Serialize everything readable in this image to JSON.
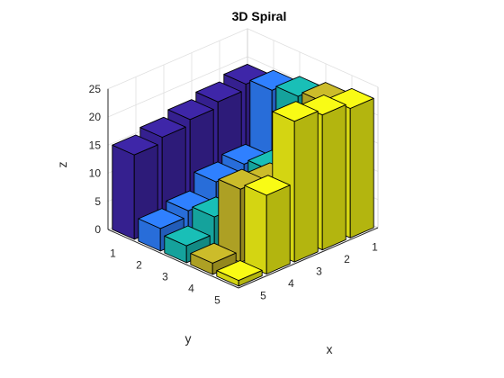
{
  "chart_data": {
    "type": "bar3",
    "title": "3D Spiral",
    "xlabel": "x",
    "ylabel": "y",
    "zlabel": "z",
    "x_ticks": [
      "1",
      "2",
      "3",
      "4",
      "5"
    ],
    "y_ticks": [
      "1",
      "2",
      "3",
      "4",
      "5"
    ],
    "z_ticks": [
      "0",
      "5",
      "10",
      "15",
      "20",
      "25"
    ],
    "zlim": [
      0,
      25
    ],
    "grid": true,
    "series_colors": [
      "#3E26A8",
      "#2F80FF",
      "#19BFB7",
      "#CCBC2A",
      "#F9FB15"
    ],
    "values": [
      [
        19,
        20,
        21,
        22,
        23
      ],
      [
        18,
        9,
        10,
        11,
        24
      ],
      [
        17,
        8,
        7,
        12,
        25
      ],
      [
        16,
        5,
        6,
        13,
        14
      ],
      [
        15,
        4,
        3,
        2,
        1
      ]
    ]
  }
}
